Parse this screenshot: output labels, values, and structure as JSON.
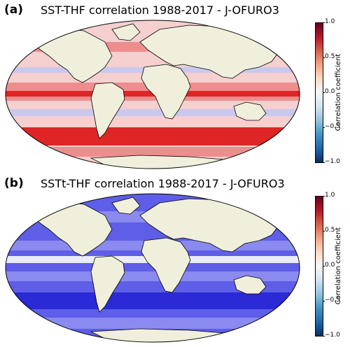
{
  "panels": [
    {
      "label": "(a)",
      "title": "SST-THF correlation 1988-2017 - J-OFURO3",
      "ocean_base": "#f6cfcf",
      "ocean_mid": "#ee8d8d",
      "ocean_strong": "#df2525",
      "ocean_weak": "#c9c9f0"
    },
    {
      "label": "(b)",
      "title": "SSTt-THF correlation 1988-2017 - J-OFURO3",
      "ocean_base": "#5e5ee8",
      "ocean_mid": "#8a8af0",
      "ocean_strong": "#2a2ad6",
      "ocean_weak": "#ececf7"
    }
  ],
  "colorbar": {
    "label": "Correlation coefficient",
    "ticks": [
      "1.0",
      "0.5",
      "0.0",
      "−0.5",
      "−1.0"
    ],
    "tick_values": [
      1.0,
      0.5,
      0.0,
      -0.5,
      -1.0
    ],
    "range": [
      -1.0,
      1.0
    ],
    "colors": [
      "#67001f",
      "#b2182b",
      "#d6604d",
      "#f4a582",
      "#fddbc7",
      "#f7f7f7",
      "#d1e5f0",
      "#92c5de",
      "#4393c3",
      "#2166ac",
      "#053061"
    ]
  },
  "land_color": "#efefdc"
}
